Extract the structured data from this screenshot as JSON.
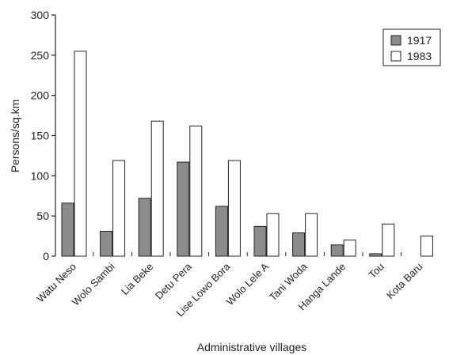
{
  "chart_data": {
    "type": "bar",
    "xlabel": "Administrative villages",
    "ylabel": "Persons/sq.km",
    "ylim": [
      0,
      300
    ],
    "yticks": [
      0,
      50,
      100,
      150,
      200,
      250,
      300
    ],
    "grid": false,
    "legend_position": "top-right",
    "categories": [
      "Watu Neso",
      "Wolo Sambi",
      "Lia Beke",
      "Detu Pera",
      "Lise Lowo Bora",
      "Wolo Lele A",
      "Tani Woda",
      "Hanga Lande",
      "Tou",
      "Kota Baru"
    ],
    "series": [
      {
        "name": "1917",
        "color": "#8c8c8c",
        "values": [
          66,
          31,
          72,
          117,
          62,
          37,
          29,
          14,
          3,
          0
        ]
      },
      {
        "name": "1983",
        "color": "#ffffff",
        "values": [
          255,
          119,
          168,
          162,
          119,
          53,
          53,
          20,
          40,
          25
        ]
      }
    ]
  }
}
